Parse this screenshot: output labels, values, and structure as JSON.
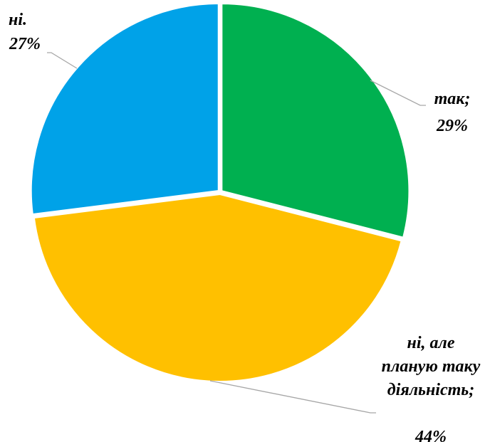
{
  "chart_data": {
    "type": "pie",
    "categories": [
      "так;",
      "ні, але планую таку діяльність;",
      "ні."
    ],
    "values": [
      29,
      44,
      27
    ],
    "value_labels": [
      "29%",
      "44%",
      "27%"
    ],
    "colors": [
      "#00b050",
      "#ffc000",
      "#00a2e8"
    ]
  }
}
